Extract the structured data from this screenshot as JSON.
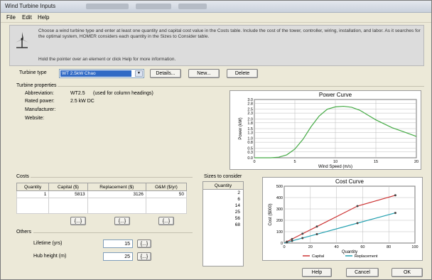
{
  "window": {
    "title": "Wind Turbine Inputs"
  },
  "menu": [
    "File",
    "Edit",
    "Help"
  ],
  "info": {
    "text": "Choose a wind turbine type and enter at least one quantity and capital cost value in the Costs table. Include the cost of the tower, controller, wiring, installation, and labor. As it searches for the optimal system, HOMER considers each quantity in the Sizes to Consider table.",
    "hint": "Hold the pointer over an element or click Help for more information."
  },
  "turbine": {
    "type_label": "Turbine type",
    "selected": "WT 2.5kW Chao",
    "buttons": {
      "details": "Details...",
      "new": "New...",
      "delete": "Delete"
    }
  },
  "properties": {
    "heading": "Turbine properties",
    "abbreviation_label": "Abbreviation:",
    "abbreviation": "WT2.5",
    "abbreviation_note": "(used for column headings)",
    "rated_label": "Rated power:",
    "rated": "2.5 kW DC",
    "manufacturer_label": "Manufacturer:",
    "website_label": "Website:"
  },
  "costs": {
    "heading": "Costs",
    "columns": [
      "Quantity",
      "Capital ($)",
      "Replacement ($)",
      "O&M ($/yr)"
    ],
    "rows": [
      [
        "1",
        "5813",
        "3126",
        "50"
      ]
    ],
    "edit_labels": [
      "{...}",
      "{...}",
      "{...}"
    ]
  },
  "sizes": {
    "heading": "Sizes to consider",
    "column": "Quantity",
    "values": [
      "2",
      "6",
      "14",
      "25",
      "56",
      "68"
    ]
  },
  "others": {
    "heading": "Others",
    "lifetime_label": "Lifetime (yrs)",
    "lifetime": "15",
    "hub_label": "Hub height (m)",
    "hub": "25",
    "edit_label": "{...}"
  },
  "footer": {
    "help": "Help",
    "cancel": "Cancel",
    "ok": "OK"
  },
  "colors": {
    "power": "#44aa44",
    "capital": "#cc3333",
    "replacement": "#22a0b0",
    "accent": "#316ac5"
  },
  "chart_data": [
    {
      "type": "line",
      "title": "Power Curve",
      "xlabel": "Wind Speed (m/s)",
      "ylabel": "Power (kW)",
      "xlim": [
        0,
        20
      ],
      "ylim": [
        0,
        3.0
      ],
      "xticks": [
        0,
        5,
        10,
        15,
        20
      ],
      "yticks": [
        0.0,
        0.3,
        0.5,
        0.8,
        1.0,
        1.3,
        1.5,
        1.8,
        2.0,
        2.3,
        2.5,
        2.8,
        3.0
      ],
      "series": [
        {
          "x": [
            0,
            2,
            3,
            4,
            5,
            6,
            7,
            8,
            9,
            10,
            11,
            12,
            13,
            14,
            15,
            16,
            17,
            18,
            19,
            20
          ],
          "y": [
            0,
            0,
            0.03,
            0.15,
            0.45,
            0.95,
            1.6,
            2.15,
            2.5,
            2.62,
            2.65,
            2.6,
            2.45,
            2.2,
            1.95,
            1.75,
            1.55,
            1.4,
            1.25,
            1.1
          ]
        }
      ],
      "grid": true
    },
    {
      "type": "line",
      "title": "Cost Curve",
      "xlabel": "Quantity",
      "ylabel": "Cost ($000)",
      "xlim": [
        0,
        100
      ],
      "ylim": [
        0,
        500
      ],
      "xticks": [
        0,
        20,
        40,
        60,
        80,
        100
      ],
      "yticks": [
        0,
        100,
        200,
        300,
        400,
        500
      ],
      "series": [
        {
          "name": "Capital",
          "x": [
            0,
            2,
            6,
            14,
            25,
            56,
            85
          ],
          "y": [
            0,
            12,
            35,
            82,
            145,
            325,
            420
          ]
        },
        {
          "name": "Replacement",
          "x": [
            0,
            2,
            6,
            14,
            25,
            56,
            85
          ],
          "y": [
            0,
            6,
            19,
            44,
            78,
            175,
            265
          ]
        }
      ],
      "legend": "bottom",
      "grid": true
    }
  ]
}
